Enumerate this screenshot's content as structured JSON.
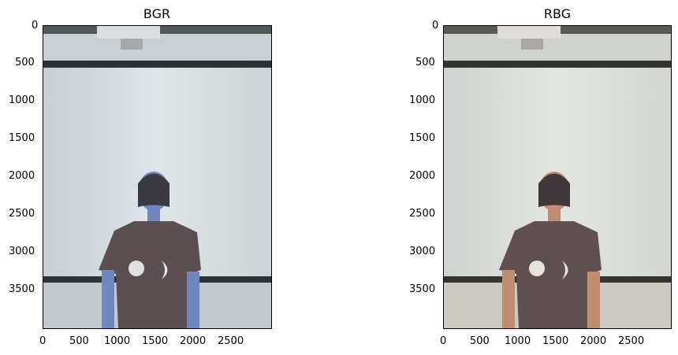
{
  "panels": [
    {
      "title": "BGR",
      "xlim": [
        0,
        3000
      ],
      "ylim": [
        4000,
        0
      ],
      "x_ticks": [
        "0",
        "500",
        "1000",
        "1500",
        "2000",
        "2500"
      ],
      "y_ticks": [
        "0",
        "500",
        "1000",
        "1500",
        "2000",
        "2500",
        "3000",
        "3500"
      ],
      "image": "bgr-photo-icon",
      "skin_color": "#6f87bf",
      "shirt_color": "#5b4f52"
    },
    {
      "title": "RBG",
      "xlim": [
        0,
        3000
      ],
      "ylim": [
        4000,
        0
      ],
      "x_ticks": [
        "0",
        "500",
        "1000",
        "1500",
        "2000",
        "2500"
      ],
      "y_ticks": [
        "0",
        "500",
        "1000",
        "1500",
        "2000",
        "2500",
        "3000",
        "3500"
      ],
      "image": "rgb-photo-icon",
      "skin_color": "#c08d70",
      "shirt_color": "#5f5052"
    }
  ]
}
